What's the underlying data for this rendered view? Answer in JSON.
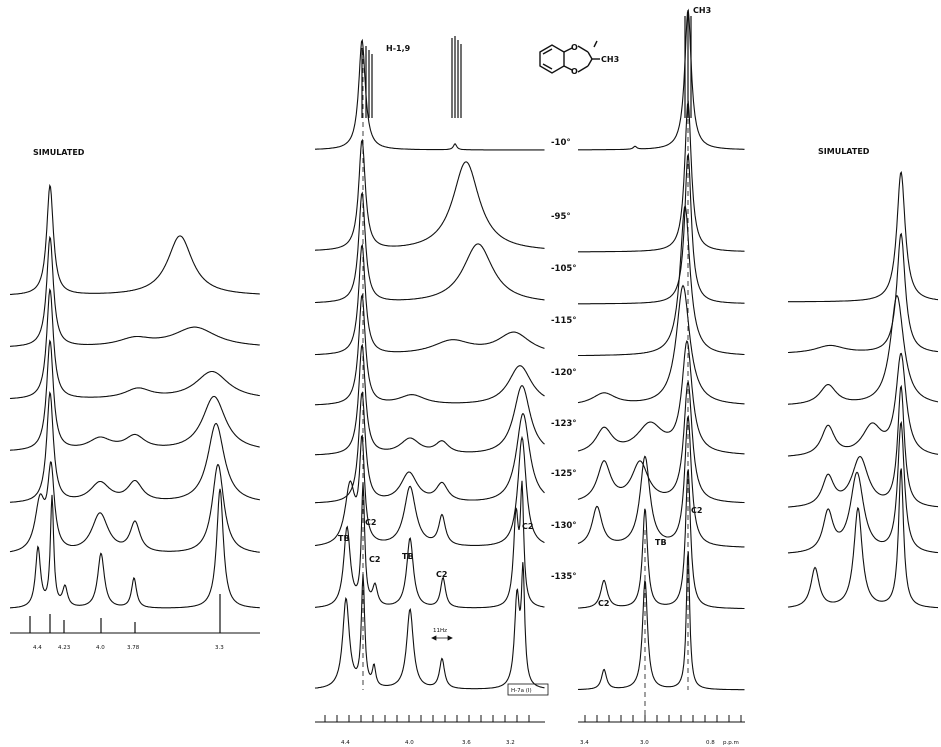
{
  "chart_data": {
    "type": "line",
    "description_panels": [
      "simulated-left",
      "experimental-aromatic",
      "experimental-methyl",
      "simulated-right"
    ],
    "temperatures": [
      "-10°",
      "-95°",
      "-105°",
      "-115°",
      "-120°",
      "-123°",
      "-125°",
      "-130°",
      "-135°"
    ],
    "left_sim_label": "SIMULATED",
    "right_sim_label": "SIMULATED",
    "top_labels": {
      "h19": "H-1,9",
      "ch3": "CH3",
      "ch3_struct": "CH3"
    },
    "peak_labels": {
      "tb1": "TB",
      "c2_1": "C2",
      "c2_2": "C2",
      "tb2": "TB",
      "c2_3": "C2",
      "c2_4": "C2",
      "c2_5": "C2",
      "tb3": "TB",
      "c2_6": "C2"
    },
    "annotations": {
      "hz": "11Hz",
      "ipp": "H-7a (I)"
    },
    "left_axis_ticks": [
      "4.4",
      "4.23",
      "4.0",
      "3.78",
      "3.3"
    ],
    "mid_axis_ticks": [
      "4.4",
      "4.0",
      "3.6",
      "3.2"
    ],
    "right_axis_ticks": [
      "3.4",
      "3.0",
      "0.8",
      "p.p.m"
    ],
    "x_unit": "ppm"
  }
}
